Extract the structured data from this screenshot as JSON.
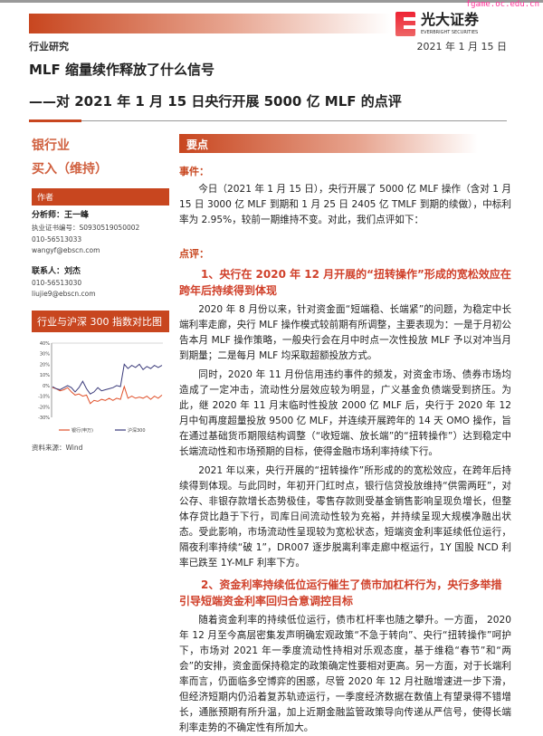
{
  "header": {
    "watermark": "fgame.oc.edu.cn",
    "logo_cn": "光大证券",
    "logo_en": "EVERBRIGHT SECURITIES",
    "category": "行业研究",
    "date": "2021 年 1 月 15 日",
    "title": "MLF 缩量续作释放了什么信号",
    "subtitle": "——对 2021 年 1 月 15 日央行开展 5000 亿 MLF 的点评"
  },
  "sidebar": {
    "industry": "银行业",
    "rating": "买入（维持）",
    "author_label": "作者",
    "analyst": "分析师：王一峰",
    "license": "执业证书编号：S0930519050002",
    "analyst_phone": "010-56513033",
    "analyst_email": "wangyf@ebscn.com",
    "contact": "联系人：刘杰",
    "contact_phone": "010-56513030",
    "contact_email": "liujie9@ebscn.com",
    "chart_title": "行业与沪深 300 指数对比图",
    "source": "资料来源：Wind"
  },
  "chart_data": {
    "type": "line",
    "yticks": [
      "40%",
      "30%",
      "20%",
      "10%",
      "0%",
      "-10%",
      "-20%",
      "-30%"
    ],
    "ylim": [
      -30,
      40
    ],
    "legend_placement": "bottom",
    "series": [
      {
        "name": "银行(申万)",
        "color": "#e0502a",
        "values": [
          -2,
          -3,
          -5,
          -4,
          -2,
          -6,
          -9,
          -8,
          -10,
          -9,
          -17,
          -14,
          -15,
          -13,
          -14,
          -12,
          -14,
          -12,
          -13,
          -1,
          -12,
          -10,
          -12,
          -11,
          -12,
          -10,
          -13,
          -10,
          -12,
          -9
        ]
      },
      {
        "name": "沪深300",
        "color": "#3a3a7a",
        "values": [
          -1,
          -3,
          -4,
          -2,
          0,
          -2,
          -6,
          -2,
          4,
          -3,
          -8,
          -6,
          -2,
          -5,
          -4,
          -3,
          -2,
          0,
          -1,
          20,
          16,
          19,
          17,
          20,
          15,
          18,
          16,
          19,
          17,
          19
        ]
      }
    ]
  },
  "main": {
    "key_label": "要点",
    "event_label": "事件：",
    "event_text": "今日（2021 年 1 月 15 日），央行开展了 5000 亿 MLF 操作（含对 1 月 15 日 3000 亿 MLF 到期和 1 月 25 日 2405 亿 TMLF 到期的续做），中标利率为 2.95%，较前一期维持不变。对此，我们点评如下：",
    "comment_label": "点评：",
    "h1": "1、央行在 2020 年 12 月开展的“扭转操作”形成的宽松效应在跨年后持续得到体现",
    "p1": "2020 年 8 月份以来，针对资金面“短端稳、长端紧”的问题，为稳定中长端利率走廊，央行 MLF 操作模式较前期有所调整，主要表现为：一是于月初公告本月 MLF 操作策略，一般央行会在月中时点一次性投放 MLF 予以对冲当月到期量；二是每月 MLF 均采取超额投放方式。",
    "p2": "同时，2020 年 11 月份信用违约事件的频发，对资金市场、债券市场均造成了一定冲击，流动性分层效应较为明显，广义基金负债端受到挤压。为此，继 2020 年 11 月末临时性投放 2000 亿 MLF 后，央行于 2020 年 12 月中旬再度超量投放 9500 亿 MLF，并连续开展跨年的 14 天 OMO 操作，旨在通过基础货币期限结构调整（“收短端、放长端”的“扭转操作”）达到稳定中长端流动性和市场预期的目标，使得金融市场利率持续下行。",
    "p3": "2021 年以来，央行开展的“扭转操作”所形成的的宽松效应，在跨年后持续得到体现。与此同时，年初开门红时点，银行信贷投放维持“供需两旺”，对公存、非银存款增长态势极佳，零售存款则受基金销售影响呈现负增长，但整体存贷比趋于下行，司库日间流动性较为充裕，并持续呈现大规模净融出状态。受此影响，市场流动性呈现较为宽松状态，短端资金利率延续低位运行，隔夜利率持续“破 1”，DR007 逐步脱离利率走廊中枢运行，1Y 国股 NCD 利率已跌至 1Y-MLF 利率下方。",
    "h2": "2、资金利率持续低位运行催生了债市加杠杆行为，央行多举措引导短端资金利率回归合意调控目标",
    "p4": "随着资金利率的持续低位运行，债市杠杆率也随之攀升。一方面， 2020 年 12 月至今高层密集发声明确宏观政策“不急于转向”、央行“扭转操作”呵护下，市场对 2021 年一季度流动性持相对乐观态度，基于维稳“春节”和“两会”的安排，资金面保持稳定的政策确定性要相对更高。另一方面，对于长端利率而言，仍面临多空博弈的困惑，尽管 2020 年 12 月社融增速进一步下滑，但经济短期内仍沿着复苏轨迹运行，一季度经济数据在数值上有望录得不错增长，通胀预期有所升温，加上近期金融监管政策导向传递从严信号，使得长端利率走势的不确定性有所加大。"
  }
}
